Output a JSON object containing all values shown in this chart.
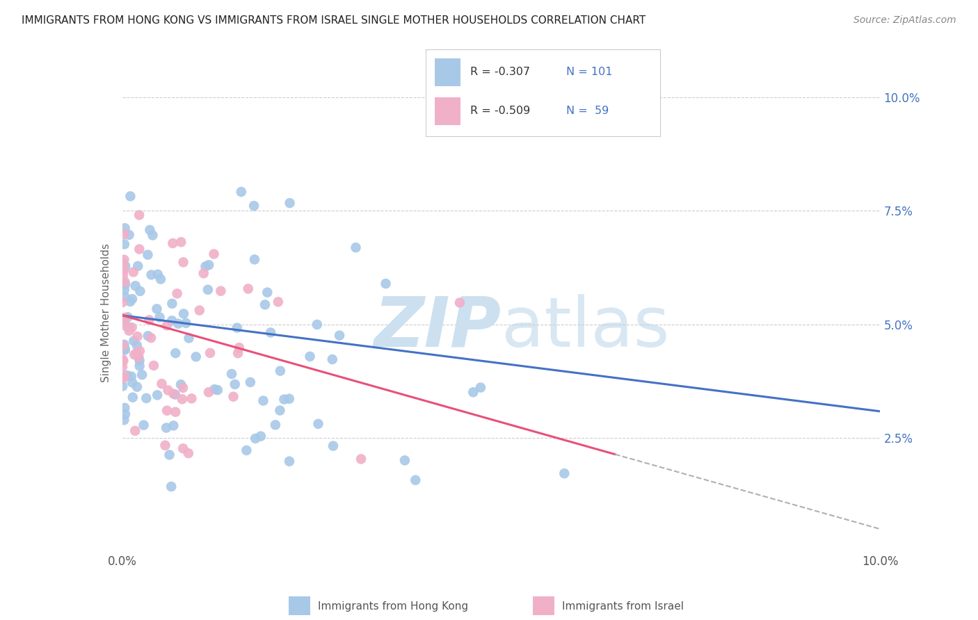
{
  "title": "IMMIGRANTS FROM HONG KONG VS IMMIGRANTS FROM ISRAEL SINGLE MOTHER HOUSEHOLDS CORRELATION CHART",
  "source": "Source: ZipAtlas.com",
  "ylabel": "Single Mother Households",
  "xlim": [
    0.0,
    0.1
  ],
  "ylim": [
    0.0,
    0.105
  ],
  "yticks": [
    0.0,
    0.025,
    0.05,
    0.075,
    0.1
  ],
  "ytick_labels_right": [
    "",
    "2.5%",
    "5.0%",
    "7.5%",
    "10.0%"
  ],
  "xticks": [
    0.0,
    0.1
  ],
  "xtick_labels": [
    "0.0%",
    "10.0%"
  ],
  "color_hk": "#a8c8e8",
  "color_il": "#f0b0c8",
  "line_color_hk": "#4472c4",
  "line_color_il": "#e8507a",
  "line_color_dash": "#b0b0b0",
  "hk_seed": 12,
  "il_seed": 99,
  "background_color": "#ffffff",
  "grid_color": "#cccccc",
  "watermark_color": "#cce0f0",
  "title_color": "#222222",
  "source_color": "#888888",
  "right_tick_color": "#4472c4",
  "left_tick_color": "#555555",
  "legend_r_color": "#333333",
  "legend_n_color": "#4472c4"
}
